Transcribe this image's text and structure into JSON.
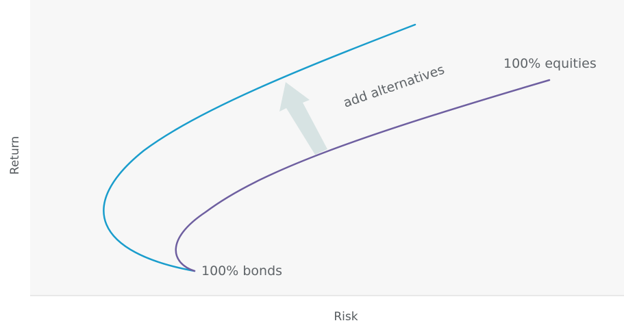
{
  "chart_data": {
    "type": "line",
    "title": "",
    "xlabel": "Risk",
    "ylabel": "Return",
    "grid": false,
    "legend": "none",
    "xticks": [],
    "yticks": [],
    "series": [
      {
        "color": "#1a9dcc",
        "line_width": 2.5
      },
      {
        "color": "#6e5fa0",
        "line_width": 2.5
      }
    ],
    "annotations": {
      "start": "100% bonds",
      "end": "100% equities",
      "shift": "add alternatives"
    },
    "arrow_color": "#d7e3e3",
    "background_color": "#f7f7f7"
  }
}
